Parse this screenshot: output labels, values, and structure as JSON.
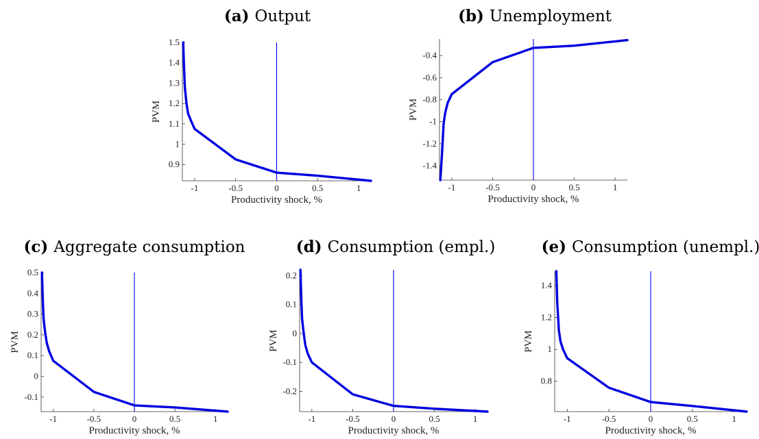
{
  "chart_data": [
    {
      "id": "a",
      "type": "line",
      "panel_tag": "(a)",
      "title": "Output",
      "xlabel": "Productivity shock, %",
      "ylabel": "PVM",
      "xlim": [
        -1.15,
        1.15
      ],
      "ylim": [
        0.82,
        1.5
      ],
      "xticks": [
        -1,
        -0.5,
        0,
        0.5,
        1
      ],
      "xtick_labels": [
        "-1",
        "-0.5",
        "0",
        "0.5",
        "1"
      ],
      "yticks": [
        0.9,
        1,
        1.1,
        1.2,
        1.3,
        1.4,
        1.5
      ],
      "ytick_labels": [
        "0.9",
        "1",
        "1.1",
        "1.2",
        "1.3",
        "1.4",
        "1.5"
      ],
      "zero_line_x": 0,
      "series": [
        {
          "x": [
            -1.14,
            -1.13,
            -1.12,
            -1.1,
            -1.08,
            -1.05,
            -1.0,
            -0.5,
            0.0,
            0.5,
            1.15
          ],
          "y": [
            1.5,
            1.38,
            1.28,
            1.2,
            1.15,
            1.12,
            1.075,
            0.925,
            0.86,
            0.845,
            0.82
          ]
        }
      ]
    },
    {
      "id": "b",
      "type": "line",
      "panel_tag": "(b)",
      "title": "Unemployment",
      "xlabel": "Productivity shock, %",
      "ylabel": "PVM",
      "xlim": [
        -1.15,
        1.15
      ],
      "ylim": [
        -1.53,
        -0.25
      ],
      "xticks": [
        -1,
        -0.5,
        0,
        0.5,
        1
      ],
      "xtick_labels": [
        "-1",
        "-0.5",
        "0",
        "0.5",
        "1"
      ],
      "yticks": [
        -1.4,
        -1.2,
        -1,
        -0.8,
        -0.6,
        -0.4
      ],
      "ytick_labels": [
        "-1.4",
        "-1.2",
        "-1",
        "-0.8",
        "-0.6",
        "-0.4"
      ],
      "zero_line_x": 0,
      "series": [
        {
          "x": [
            -1.14,
            -1.12,
            -1.1,
            -1.08,
            -1.05,
            -1.0,
            -0.5,
            0.0,
            0.5,
            1.15
          ],
          "y": [
            -1.53,
            -1.3,
            -1.02,
            -0.92,
            -0.83,
            -0.75,
            -0.46,
            -0.33,
            -0.31,
            -0.26
          ]
        }
      ]
    },
    {
      "id": "c",
      "type": "line",
      "panel_tag": "(c)",
      "title": "Aggregate consumption",
      "xlabel": "Productivity shock, %",
      "ylabel": "PVM",
      "xlim": [
        -1.15,
        1.15
      ],
      "ylim": [
        -0.17,
        0.5
      ],
      "xticks": [
        -1,
        -0.5,
        0,
        0.5,
        1
      ],
      "xtick_labels": [
        "-1",
        "-0.5",
        "0",
        "0.5",
        "1"
      ],
      "yticks": [
        -0.1,
        0,
        0.1,
        0.2,
        0.3,
        0.4,
        0.5
      ],
      "ytick_labels": [
        "-0.1",
        "0",
        "0.1",
        "0.2",
        "0.3",
        "0.4",
        "0.5"
      ],
      "zero_line_x": 0,
      "series": [
        {
          "x": [
            -1.14,
            -1.13,
            -1.12,
            -1.1,
            -1.08,
            -1.05,
            -1.0,
            -0.5,
            0.0,
            0.5,
            1.15
          ],
          "y": [
            0.5,
            0.37,
            0.28,
            0.21,
            0.16,
            0.12,
            0.075,
            -0.075,
            -0.14,
            -0.15,
            -0.17
          ]
        }
      ]
    },
    {
      "id": "d",
      "type": "line",
      "panel_tag": "(d)",
      "title": "Consumption (empl.)",
      "xlabel": "Productivity shock, %",
      "ylabel": "PVM",
      "xlim": [
        -1.15,
        1.15
      ],
      "ylim": [
        -0.27,
        0.22
      ],
      "xticks": [
        -1,
        -0.5,
        0,
        0.5,
        1
      ],
      "xtick_labels": [
        "-1",
        "-0.5",
        "0",
        "0.5",
        "1"
      ],
      "yticks": [
        -0.2,
        -0.1,
        0,
        0.1,
        0.2
      ],
      "ytick_labels": [
        "-0.2",
        "-0.1",
        "0",
        "0.1",
        "0.2"
      ],
      "zero_line_x": 0,
      "series": [
        {
          "x": [
            -1.14,
            -1.13,
            -1.12,
            -1.1,
            -1.08,
            -1.05,
            -1.0,
            -0.5,
            0.0,
            0.5,
            1.15
          ],
          "y": [
            0.22,
            0.12,
            0.05,
            0.0,
            -0.04,
            -0.07,
            -0.1,
            -0.21,
            -0.25,
            -0.26,
            -0.27
          ]
        }
      ]
    },
    {
      "id": "e",
      "type": "line",
      "panel_tag": "(e)",
      "title": "Consumption (unempl.)",
      "xlabel": "Productivity shock, %",
      "ylabel": "PVM",
      "xlim": [
        -1.15,
        1.15
      ],
      "ylim": [
        0.61,
        1.49
      ],
      "xticks": [
        -1,
        -0.5,
        0,
        0.5,
        1
      ],
      "xtick_labels": [
        "-1",
        "-0.5",
        "0",
        "0.5",
        "1"
      ],
      "yticks": [
        0.8,
        1,
        1.2,
        1.4
      ],
      "ytick_labels": [
        "0.8",
        "1",
        "1.2",
        "1.4"
      ],
      "zero_line_x": 0,
      "series": [
        {
          "x": [
            -1.13,
            -1.12,
            -1.1,
            -1.08,
            -1.05,
            -1.0,
            -0.5,
            0.0,
            0.5,
            1.15
          ],
          "y": [
            1.49,
            1.3,
            1.12,
            1.05,
            1.0,
            0.945,
            0.76,
            0.67,
            0.645,
            0.61
          ]
        }
      ]
    }
  ]
}
